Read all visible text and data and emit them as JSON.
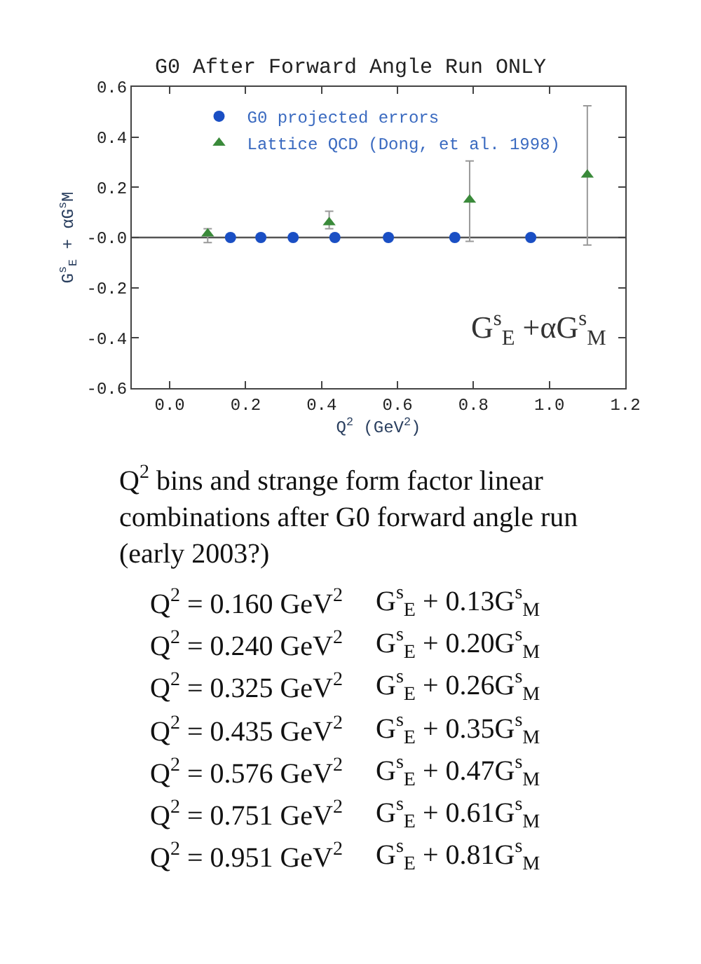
{
  "chart_data": {
    "type": "scatter",
    "title": "G0 After Forward Angle Run ONLY",
    "xlabel": "Q$^{2}$ (GeV$^{2}$)",
    "ylabel": "G$^{s}$$_{E}$ + αG$^{s}$M",
    "series": [
      {
        "name": "G0 projected errors",
        "color": "#1a4fc4",
        "marker": "circle",
        "x": [
          0.16,
          0.24,
          0.325,
          0.435,
          0.576,
          0.751,
          0.951
        ],
        "values": [
          0,
          0,
          0,
          0,
          0,
          0,
          0
        ]
      },
      {
        "name": "Lattice QCD (Dong, et al. 1998)",
        "color": "#3a8a3a",
        "marker": "triangle",
        "x": [
          0.1,
          0.42,
          0.79,
          1.1
        ],
        "values": [
          0.015,
          0.06,
          0.15,
          0.25
        ],
        "errors": [
          [
            -0.02,
            0.035
          ],
          [
            0.035,
            0.105
          ],
          [
            -0.015,
            0.305
          ],
          [
            -0.03,
            0.525
          ]
        ]
      }
    ],
    "xlim": [
      -0.1,
      1.2
    ],
    "xticks": [
      {
        "value": 0,
        "label": "0.0"
      },
      0.2,
      0.4,
      0.6,
      0.8,
      {
        "value": 1,
        "label": "1.0"
      },
      1.2
    ],
    "ylim": [
      -0.6,
      0.6
    ],
    "yticks": [
      -0.6,
      -0.4,
      -0.2,
      {
        "value": 0,
        "label": "-0.0"
      },
      0.2,
      0.4,
      0.6
    ],
    "ref_lines": [
      {
        "axis": "y",
        "value": 0,
        "color": "#555555"
      }
    ],
    "grid": false,
    "legend": "top left",
    "annotations": [
      "G$^{s}$$_{E}$ +αG$^{s}$$_{M}$",
      "Q$^{2}$ bins and strange form factor linear\ncombinations after G0 forward angle run\n(early 2003?)",
      "Q$^{2}$ = 0.160 GeV$^{2}$",
      "G$^{s}$$_{E}$ + 0.13G$^{s}$$_{M}$",
      "Q$^{2}$ = 0.240 GeV$^{2}$",
      "G$^{s}$$_{E}$ + 0.20G$^{s}$$_{M}$",
      "Q$^{2}$ = 0.325 GeV$^{2}$",
      "G$^{s}$$_{E}$ + 0.26G$^{s}$$_{M}$",
      "Q$^{2}$ = 0.435 GeV$^{2}$",
      "G$^{s}$$_{E}$ + 0.35G$^{s}$$_{M}$",
      "Q$^{2}$ = 0.576 GeV$^{2}$",
      "G$^{s}$$_{E}$ + 0.47G$^{s}$$_{M}$",
      "Q$^{2}$ = 0.751 GeV$^{2}$",
      "G$^{s}$$_{E}$ + 0.61G$^{s}$$_{M}$",
      "Q$^{2}$ = 0.951 GeV$^{2}$",
      "G$^{s}$$_{E}$ + 0.81G$^{s}$$_{M}$"
    ]
  }
}
